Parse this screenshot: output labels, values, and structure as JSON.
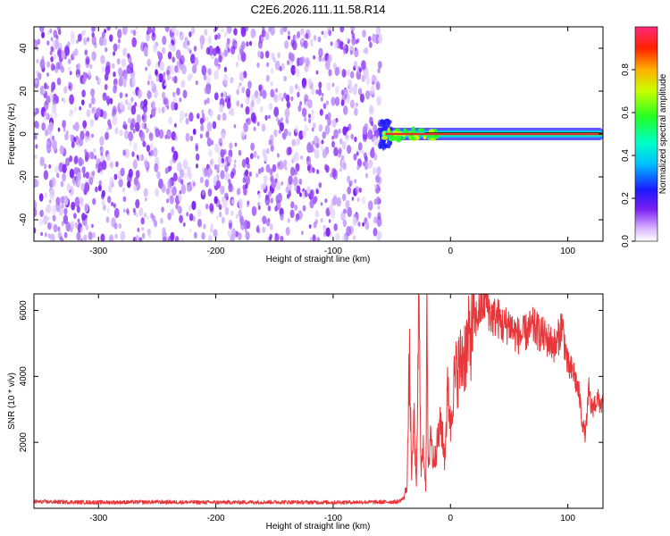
{
  "title": "C2E6.2026.111.11.58.R14",
  "colors": {
    "snr_line": "#e8363a",
    "spectrogram_noise": "#7a1ff2",
    "signal_core": "#e0342a",
    "signal_halo": "#1cf0a0"
  },
  "chart_data": [
    {
      "type": "heatmap",
      "title": "",
      "xlabel": "Height of straight line (km)",
      "ylabel": "Frequency (Hz)",
      "xlim": [
        -355,
        130
      ],
      "ylim": [
        -50,
        50
      ],
      "x_ticks": [
        -300,
        -200,
        -100,
        0,
        100
      ],
      "y_ticks": [
        -40,
        -20,
        0,
        20,
        40
      ],
      "colorbar": {
        "label": "Normalized spectral amplitude",
        "range": [
          0,
          1
        ],
        "ticks": [
          0.0,
          0.2,
          0.4,
          0.6,
          0.8
        ],
        "colormap": "rainbow (violet-blue-cyan-green-yellow-red-pink)"
      },
      "regions": [
        {
          "x_range": [
            -355,
            -60
          ],
          "freq_range": [
            -50,
            50
          ],
          "amplitude": "low (0.0-0.2), noise"
        },
        {
          "x_range": [
            -60,
            130
          ],
          "freq_center": 0,
          "amplitude_peak": 0.9
        }
      ]
    },
    {
      "type": "line",
      "title": "",
      "xlabel": "Height of straight line (km)",
      "ylabel": "SNR (10 * v/v)",
      "xlim": [
        -355,
        130
      ],
      "ylim": [
        0,
        6500
      ],
      "x_ticks": [
        -300,
        -200,
        -100,
        0,
        100
      ],
      "y_ticks": [
        2000,
        4000,
        6000
      ],
      "series": [
        {
          "x": [
            -355,
            -300,
            -250,
            -200,
            -150,
            -100,
            -60,
            -45,
            -40,
            -37,
            -35,
            -33,
            -31,
            -29,
            -27,
            -25,
            -23,
            -21,
            -20,
            -19,
            -17,
            -15,
            -12,
            -10,
            -8,
            -5,
            -2,
            0,
            2,
            5,
            10,
            15,
            20,
            25,
            28,
            30,
            32,
            35,
            40,
            45,
            50,
            55,
            60,
            70,
            80,
            90,
            95,
            100,
            105,
            108,
            110,
            112,
            115,
            118,
            120,
            125,
            130
          ],
          "y": [
            200,
            180,
            190,
            180,
            190,
            180,
            190,
            200,
            300,
            700,
            4500,
            900,
            2800,
            500,
            6200,
            1200,
            1800,
            600,
            6200,
            900,
            2500,
            1400,
            1800,
            2200,
            2600,
            1500,
            3800,
            2400,
            3600,
            4100,
            4500,
            5000,
            5600,
            6000,
            6200,
            6400,
            6100,
            5800,
            5800,
            5500,
            5600,
            5300,
            5200,
            5500,
            5200,
            4900,
            5600,
            4300,
            4100,
            3700,
            3400,
            2700,
            2200,
            3600,
            3000,
            3300,
            3100
          ]
        }
      ]
    }
  ]
}
